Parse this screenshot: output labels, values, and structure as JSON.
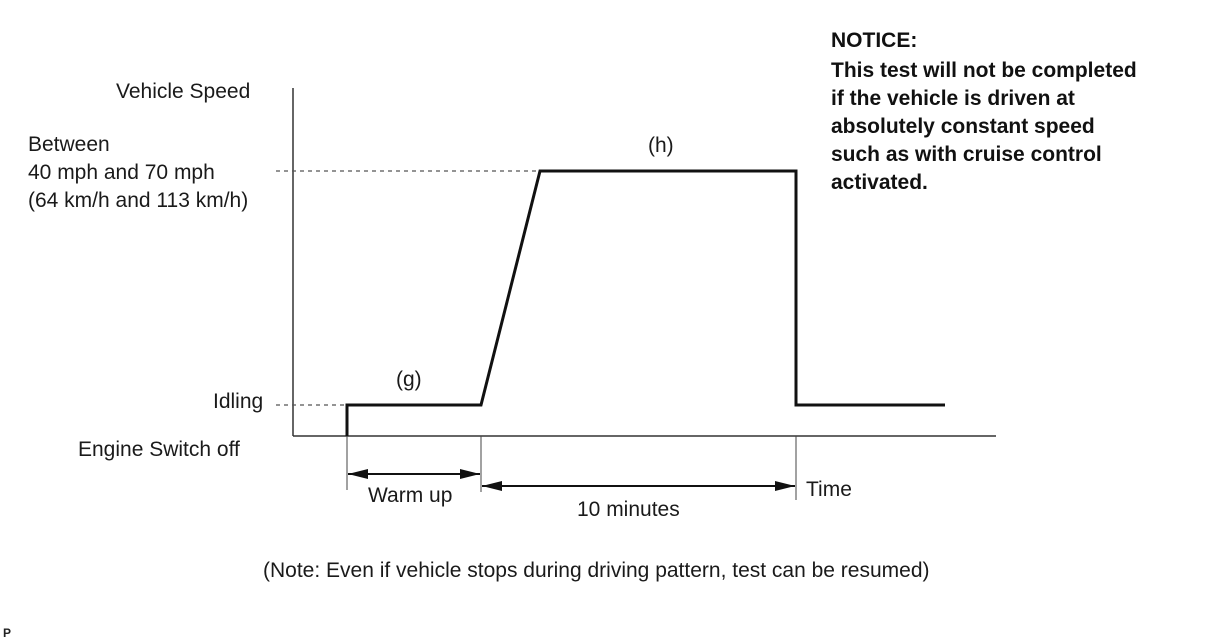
{
  "y_axis_title": "Vehicle Speed",
  "speed_band": {
    "line1": "Between",
    "line2": "40 mph and 70 mph",
    "line3": "(64 km/h and 113 km/h)"
  },
  "idling_label": "Idling",
  "engine_off_label": "Engine Switch off",
  "segment_labels": {
    "g": "(g)",
    "h": "(h)"
  },
  "durations": {
    "warm_up": "Warm up",
    "ten_minutes": "10 minutes"
  },
  "time_label": "Time",
  "notice": {
    "heading": "NOTICE:",
    "lines": [
      "This test will not be completed",
      "if the vehicle is driven at",
      "absolutely constant speed",
      "such as with cruise control",
      "activated."
    ]
  },
  "note": "(Note: Even if vehicle stops during driving pattern, test can be resumed)",
  "corner_mark": "P"
}
